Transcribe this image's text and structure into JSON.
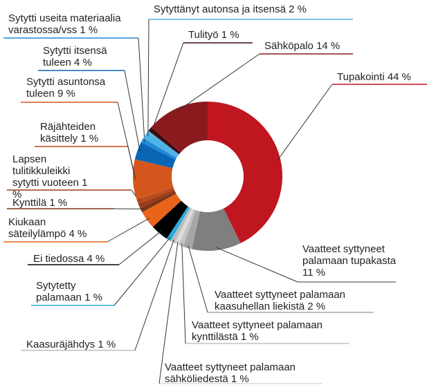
{
  "chart_data": {
    "type": "donut",
    "categories": [
      "Tupakointi",
      "Vaatteet syttyneet palamaan tupakasta",
      "Vaatteet syttyneet palamaan kaasuhellan liekistä",
      "Vaatteet syttyneet palamaan kynttilästä",
      "Vaatteet syttyneet palamaan sähköliedestä",
      "Kaasuräjähdys",
      "Sytytetty palamaan",
      "Ei tiedossa",
      "Kiukaan säteilylämpö",
      "Kynttilä",
      "Lapsen tulitikkuleikki sytytti vuoteen",
      "Räjähteiden käsittely",
      "Sytytti asuntonsa tuleen",
      "Sytytti itsensä tuleen",
      "Sytytti useita materiaalia varastossa/vss",
      "Sytyttänyt autonsa ja itsensä",
      "Tulityö",
      "Sähköpalo"
    ],
    "values": [
      44,
      11,
      2,
      1,
      1,
      1,
      1,
      4,
      4,
      1,
      1,
      1,
      9,
      4,
      1,
      2,
      1,
      14
    ],
    "value_labels": [
      "44 %",
      "11 %",
      "2 %",
      "1 %",
      "1 %",
      "1 %",
      "1 %",
      "4 %",
      "4 %",
      "1 %",
      "1 %",
      "1 %",
      "9 %",
      "4 %",
      "1 %",
      "2 %",
      "1 %",
      "14 %"
    ],
    "colors": [
      "#c0161f",
      "#7f7f7f",
      "#a6a6a6",
      "#c4c4c4",
      "#dcdcdc",
      "#bdbdbd",
      "#29abe2",
      "#000000",
      "#e8641b",
      "#7a3417",
      "#9c3c19",
      "#b84a1c",
      "#d4561c",
      "#0a66b5",
      "#1e88d6",
      "#4fb3e8",
      "#3a0d10",
      "#8b1a1f"
    ]
  }
}
